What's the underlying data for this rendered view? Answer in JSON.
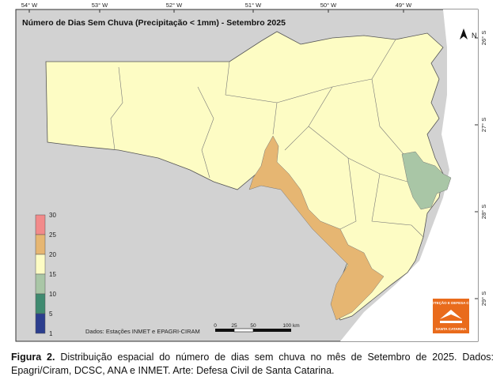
{
  "map": {
    "title": "Número de Dias Sem Chuva (Precipitação < 1mm) - Setembro 2025",
    "longitude_labels": [
      "54° W",
      "53° W",
      "52° W",
      "51° W",
      "50° W",
      "49° W"
    ],
    "latitude_labels": [
      "26° S",
      "27° S",
      "28° S",
      "29° S"
    ],
    "legend": {
      "ticks": [
        30,
        25,
        20,
        15,
        10,
        5,
        1
      ],
      "colors": [
        "#f28a8a",
        "#e6b672",
        "#fdfcc4",
        "#a9c6a6",
        "#3f8a70",
        "#2c3e8e"
      ]
    },
    "source": "Dados: Estações INMET e EPAGRI-CIRAM",
    "scale_bar": {
      "labels": [
        "0",
        "25",
        "50",
        "100 km"
      ]
    },
    "north": "N",
    "logo": [
      "PROTEÇÃO E DEFESA CIVIL",
      "SANTA CATARINA"
    ]
  },
  "caption": {
    "label": "Figura 2.",
    "text": " Distribuição espacial do número de dias sem chuva no mês de Setembro de 2025. Dados: Epagri/Ciram, DCSC, ANA e INMET. Arte: Defesa Civil de Santa Catarina."
  }
}
